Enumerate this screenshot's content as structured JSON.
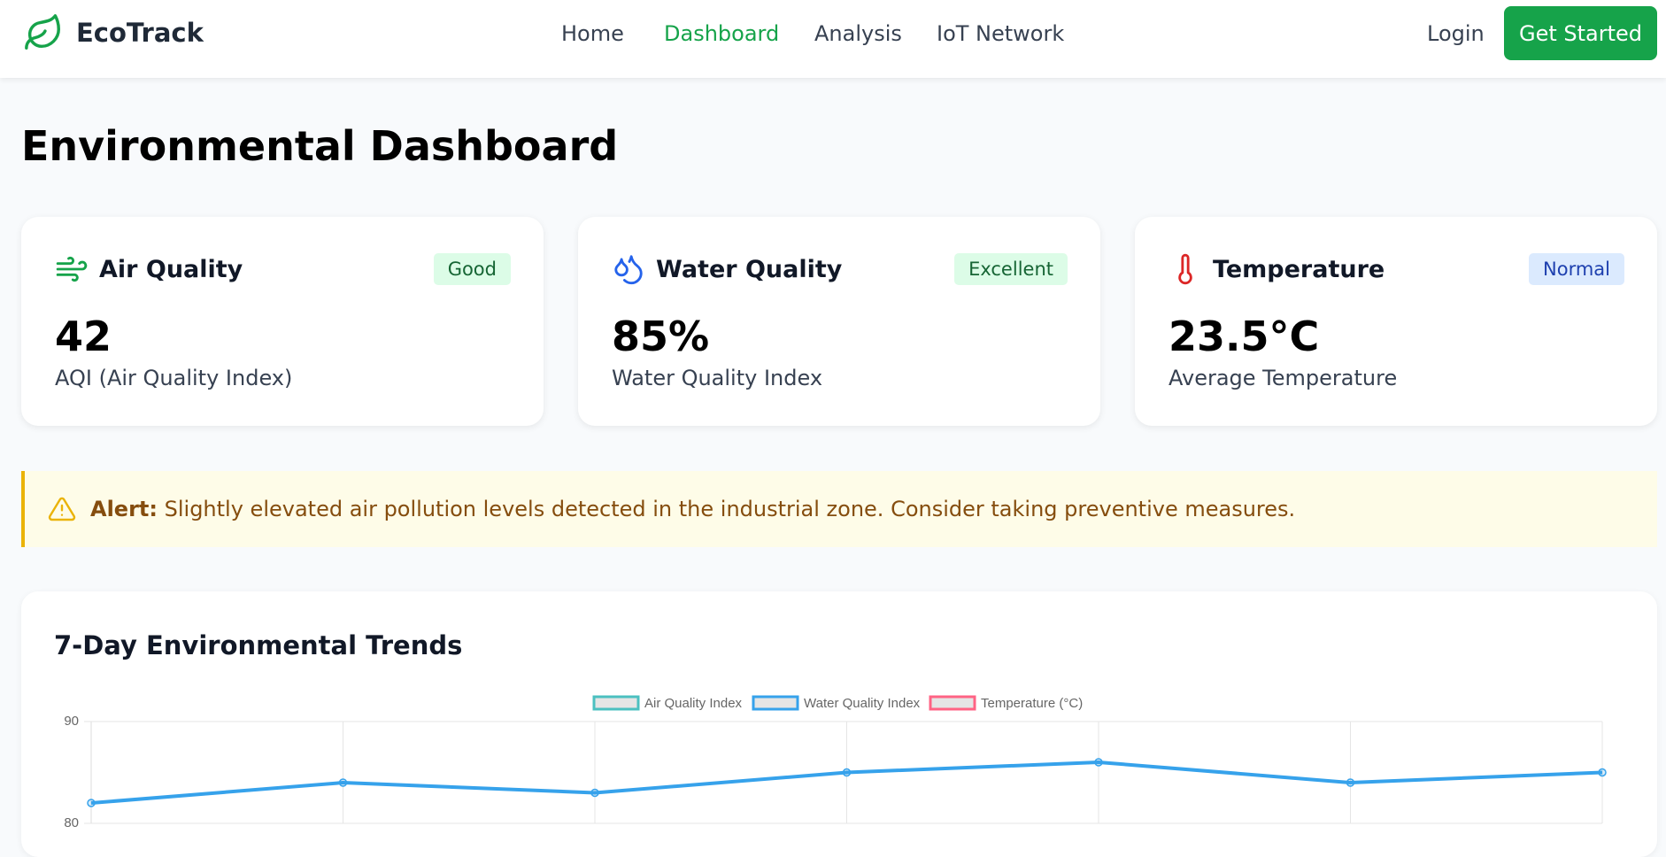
{
  "brand": "EcoTrack",
  "nav": [
    "Home",
    "Dashboard",
    "Analysis",
    "IoT Network"
  ],
  "login": "Login",
  "cta": "Get Started",
  "header": {
    "title": "Environmental Dashboard"
  },
  "cards": [
    {
      "title": "Air Quality",
      "badge": "Good",
      "value": "42",
      "caption": "AQI (Air Quality Index)"
    },
    {
      "title": "Water Quality",
      "badge": "Excellent",
      "value": "85%",
      "caption": "Water Quality Index"
    },
    {
      "title": "Temperature",
      "badge": "Normal",
      "value": "23.5°C",
      "caption": "Average Temperature"
    }
  ],
  "alert": {
    "label": "Alert:",
    "text": "Slightly elevated air pollution levels detected in the industrial zone. Consider taking preventive measures."
  },
  "chart_data": {
    "type": "line",
    "title": "7-Day Environmental Trends",
    "categories": [
      null,
      null,
      null,
      null,
      null,
      null,
      null
    ],
    "series": [
      {
        "name": "Air Quality Index",
        "color": "#4bc0c0"
      },
      {
        "name": "Water Quality Index",
        "color": "#36a2eb",
        "values": [
          82,
          84,
          83,
          85,
          86,
          84,
          85
        ]
      },
      {
        "name": "Temperature (°C)",
        "color": "#ff6384"
      }
    ],
    "ylim": [
      80,
      90
    ],
    "yticks": [
      80,
      90
    ],
    "grid": true,
    "legend": "top"
  }
}
